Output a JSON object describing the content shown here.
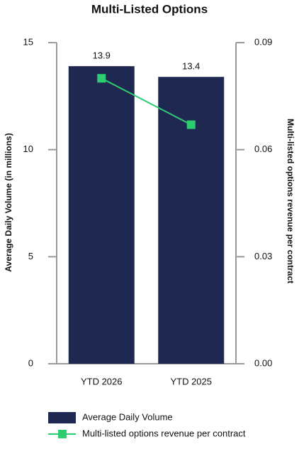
{
  "chart_data": {
    "type": "bar",
    "title": "Multi-Listed Options",
    "categories": [
      "YTD 2026",
      "YTD 2025"
    ],
    "series": [
      {
        "name": "Average Daily Volume",
        "type": "bar",
        "color": "#1f2850",
        "values": [
          13.9,
          13.4
        ]
      },
      {
        "name": "Multi-listed options revenue per contract",
        "type": "line",
        "axis": "y2",
        "color": "#2ecc71",
        "values": [
          0.08,
          0.067
        ]
      }
    ],
    "ylabel": "Average Daily Volume (in millions)",
    "y2label": "Multi-listed options revenue per contract",
    "ylim": [
      0,
      15
    ],
    "yticks": [
      0,
      5,
      10,
      15
    ],
    "y2lim": [
      0,
      0.09
    ],
    "y2ticks": [
      {
        "value": 0,
        "label": "0.00"
      },
      {
        "value": 0.03,
        "label": "0.03"
      },
      {
        "value": 0.06,
        "label": "0.06"
      },
      {
        "value": 0.09,
        "label": "0.09"
      }
    ],
    "grid": false,
    "legend": "bottom"
  }
}
